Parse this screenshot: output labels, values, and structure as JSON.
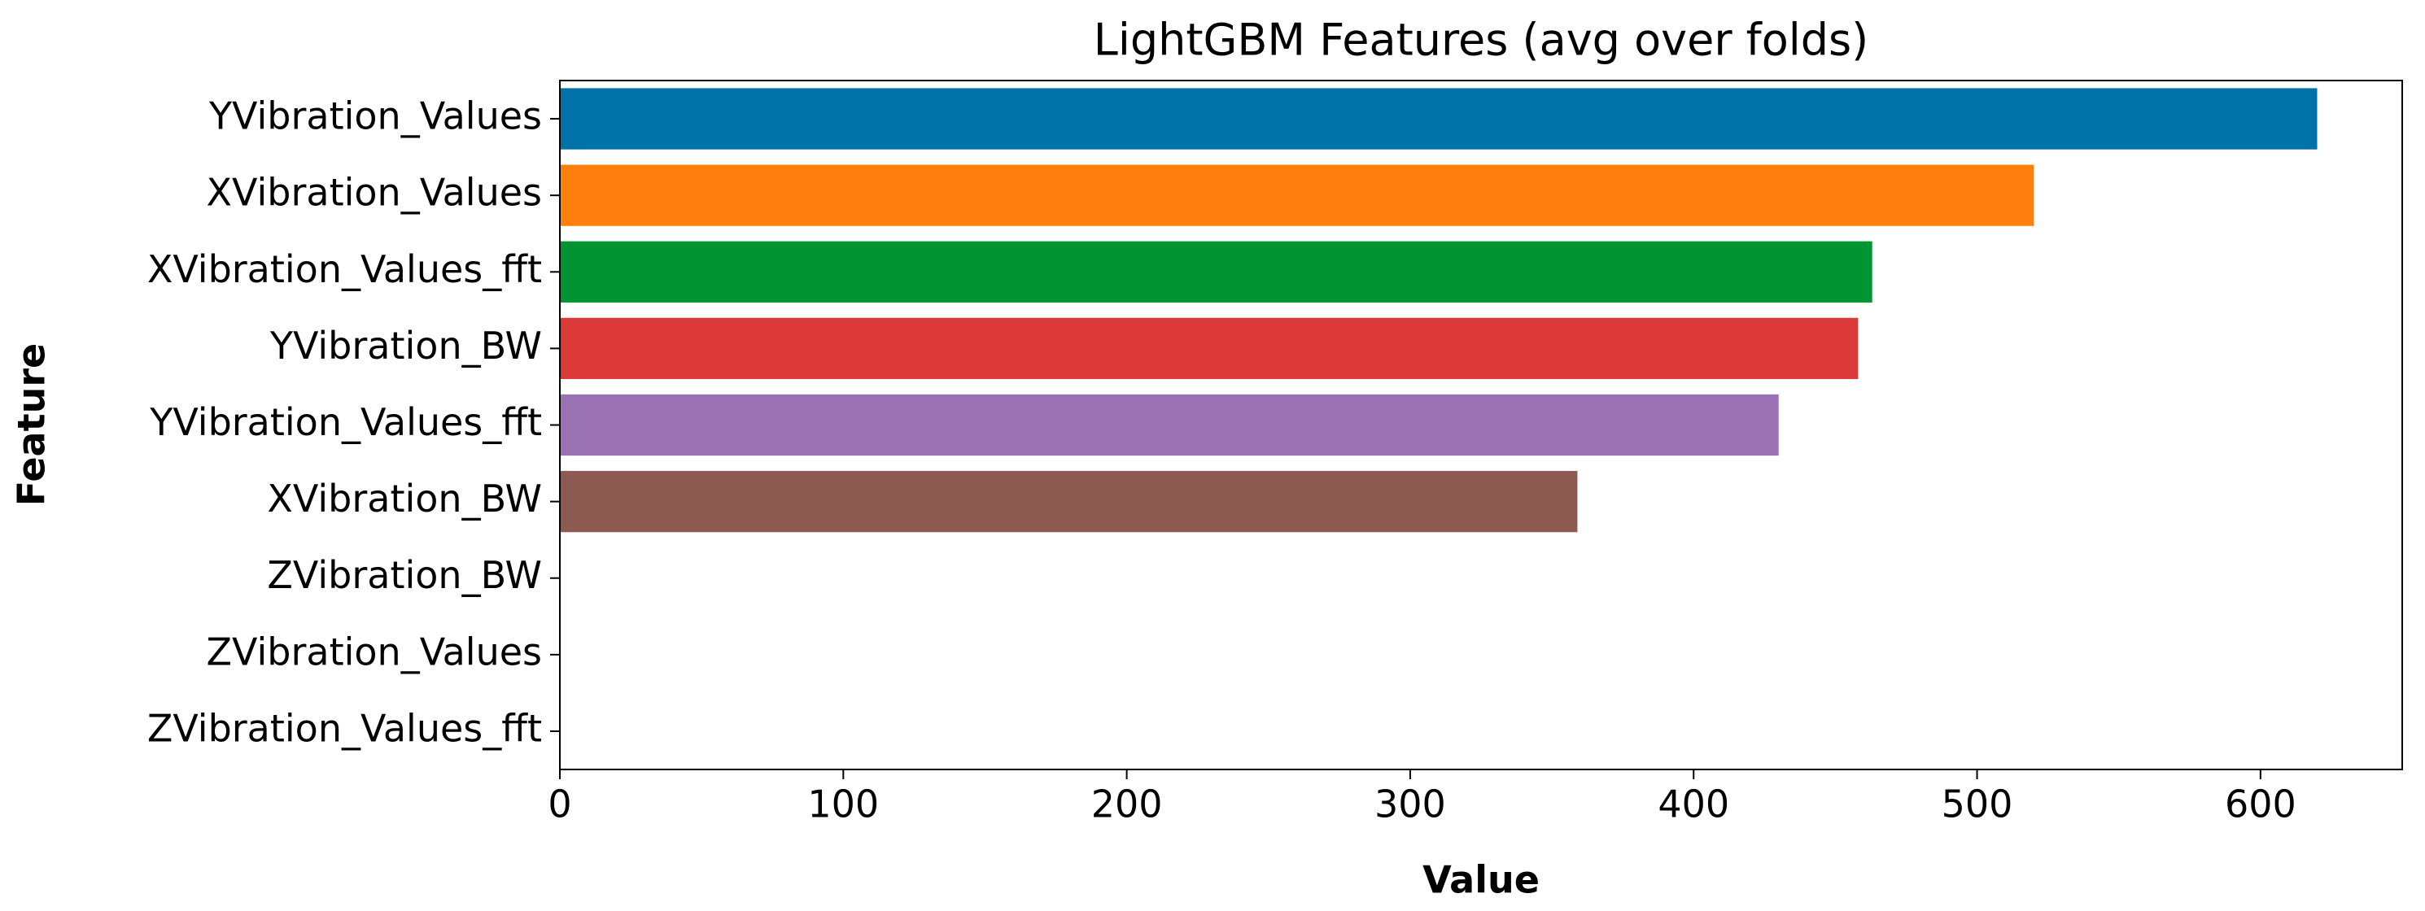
{
  "chart_data": {
    "type": "barh",
    "title": "LightGBM Features (avg over folds)",
    "x_label": "Value",
    "y_label": "Feature",
    "categories": [
      "YVibration_Values",
      "XVibration_Values",
      "XVibration_Values_fft",
      "YVibration_BW",
      "YVibration_Values_fft",
      "XVibration_BW",
      "ZVibration_BW",
      "ZVibration_Values",
      "ZVibration_Values_fft"
    ],
    "values": [
      620,
      520,
      463,
      458,
      430,
      359,
      0,
      0,
      0
    ],
    "colors": [
      "#0072a8",
      "#ff7f0e",
      "#009432",
      "#dc3a3a",
      "#9b72b3",
      "#8c5a50",
      "#e377c2",
      "#7f7f7f",
      "#bcbd22"
    ],
    "xlim": [
      0,
      650
    ],
    "xticks": [
      0,
      100,
      200,
      300,
      400,
      500,
      600
    ],
    "grid": false
  }
}
